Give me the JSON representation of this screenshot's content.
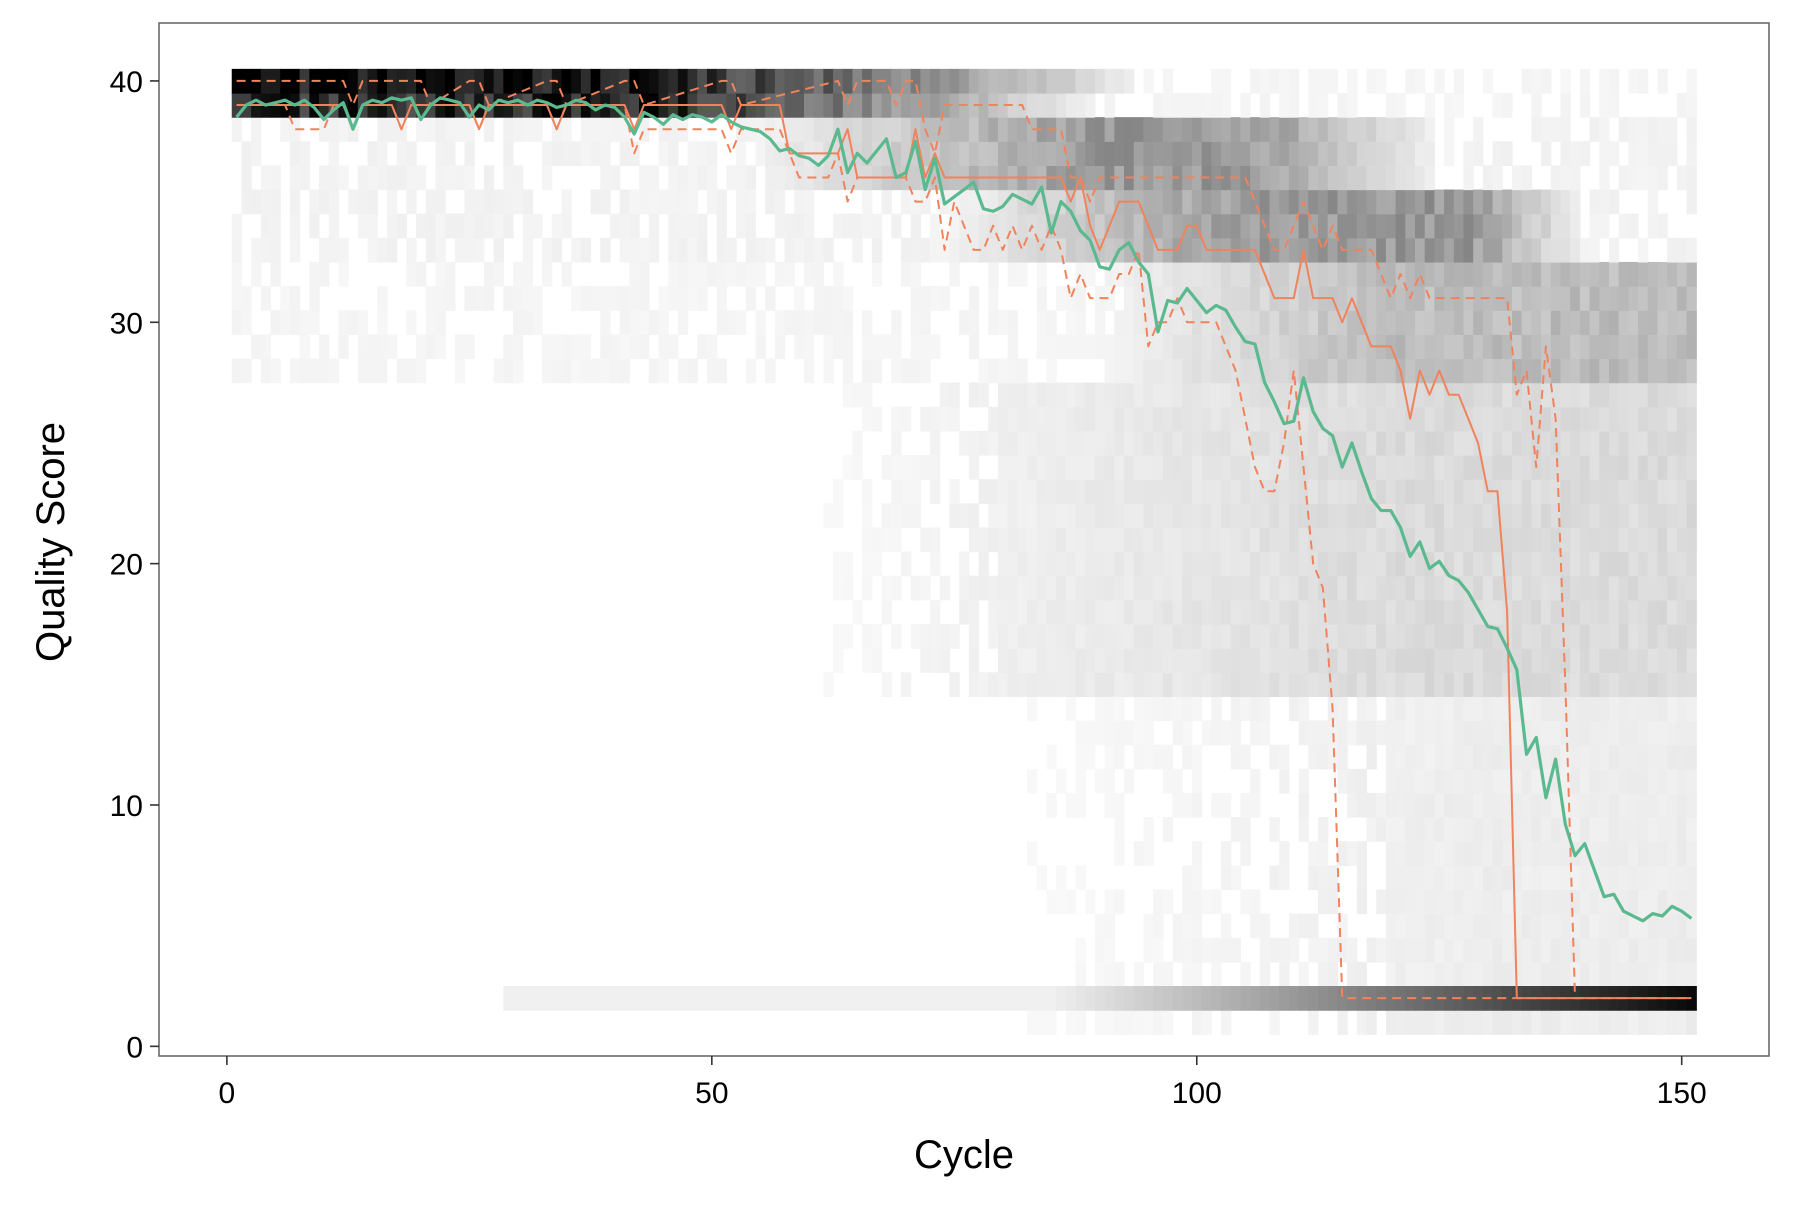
{
  "chart_data": {
    "type": "heatmap",
    "title": "",
    "xlabel": "Cycle",
    "ylabel": "Quality Score",
    "xlim": [
      -7,
      159
    ],
    "ylim": [
      -0.4,
      42.4
    ],
    "x_ticks": [
      0,
      50,
      100,
      150
    ],
    "y_ticks": [
      0,
      10,
      20,
      30,
      40
    ],
    "grid": false,
    "legend": "none",
    "heatmap": {
      "x_range": [
        1,
        151
      ],
      "y_range": [
        1,
        40
      ],
      "color_low": "#ffffff",
      "color_high": "#000000",
      "description_bands": [
        {
          "q": 40,
          "cycles": [
            1,
            51
          ],
          "level": 0.9
        },
        {
          "q": 39,
          "cycles": [
            1,
            51
          ],
          "level": 0.8
        },
        {
          "q": 36,
          "cycles": [
            55,
            110
          ],
          "level": 0.45
        },
        {
          "q": 33,
          "cycles": [
            75,
            135
          ],
          "level": 0.45
        },
        {
          "q": 31,
          "cycles": [
            95,
            151
          ],
          "level": 0.3
        },
        {
          "q": 2,
          "cycles": [
            29,
            151
          ],
          "level": 0.7
        }
      ]
    },
    "series": [
      {
        "role": "mean",
        "color": "#5bb98f",
        "dash": "none",
        "x": [
          1,
          2,
          3,
          4,
          5,
          6,
          7,
          8,
          9,
          10,
          11,
          12,
          13,
          14,
          15,
          16,
          17,
          18,
          19,
          20,
          21,
          22,
          23,
          24,
          25,
          26,
          27,
          28,
          29,
          30,
          31,
          32,
          33,
          34,
          35,
          36,
          37,
          38,
          39,
          40,
          41,
          42,
          43,
          44,
          45,
          46,
          47,
          48,
          49,
          50,
          51,
          52,
          53,
          54,
          55,
          56,
          57,
          58,
          59,
          60,
          61,
          62,
          63,
          64,
          65,
          66,
          67,
          68,
          69,
          70,
          71,
          72,
          73,
          74,
          75,
          76,
          77,
          78,
          79,
          80,
          81,
          82,
          83,
          84,
          85,
          86,
          87,
          88,
          89,
          90,
          91,
          92,
          93,
          94,
          95,
          96,
          97,
          98,
          99,
          100,
          101,
          102,
          103,
          104,
          105,
          106,
          107,
          108,
          109,
          110,
          111,
          112,
          113,
          114,
          115,
          116,
          117,
          118,
          119,
          120,
          121,
          122,
          123,
          124,
          125,
          126,
          127,
          128,
          129,
          130,
          131,
          132,
          133,
          134,
          135,
          136,
          137,
          138,
          139,
          140,
          141,
          142,
          143,
          144,
          145,
          146,
          147,
          148,
          149,
          150,
          151
        ],
        "y": [
          38.5,
          39.0,
          39.2,
          39.0,
          39.1,
          39.2,
          39.0,
          39.2,
          38.9,
          38.4,
          38.8,
          39.1,
          38.0,
          39.0,
          39.2,
          39.1,
          39.3,
          39.2,
          39.3,
          38.4,
          39.0,
          39.3,
          39.2,
          39.1,
          38.5,
          39.0,
          38.8,
          39.2,
          39.1,
          39.2,
          39.0,
          39.2,
          39.1,
          38.9,
          39.0,
          39.2,
          39.1,
          38.8,
          39.0,
          38.9,
          38.5,
          37.8,
          38.7,
          38.5,
          38.2,
          38.6,
          38.4,
          38.6,
          38.5,
          38.3,
          38.6,
          38.3,
          38.1,
          38.0,
          37.9,
          37.6,
          37.1,
          37.2,
          36.9,
          36.8,
          36.5,
          36.9,
          38.0,
          36.2,
          37.0,
          36.6,
          37.1,
          37.6,
          36.0,
          36.2,
          37.5,
          35.5,
          36.8,
          34.9,
          35.2,
          35.5,
          35.8,
          34.7,
          34.6,
          34.8,
          35.3,
          35.1,
          34.9,
          35.6,
          33.7,
          35.0,
          34.6,
          33.8,
          33.4,
          32.3,
          32.2,
          33.0,
          33.3,
          32.5,
          32.0,
          29.6,
          30.9,
          30.8,
          31.4,
          30.9,
          30.4,
          30.7,
          30.5,
          29.8,
          29.2,
          29.1,
          27.5,
          26.7,
          25.8,
          25.9,
          27.7,
          26.3,
          25.6,
          25.3,
          24.0,
          25.0,
          23.8,
          22.7,
          22.2,
          22.2,
          21.5,
          20.3,
          20.9,
          19.8,
          20.1,
          19.5,
          19.3,
          18.8,
          18.1,
          17.4,
          17.3,
          16.5,
          15.6,
          12.1,
          12.8,
          10.3,
          11.9,
          9.2,
          7.9,
          8.4,
          7.3,
          6.2,
          6.3,
          5.6,
          5.4,
          5.2,
          5.5,
          5.4,
          5.8,
          5.6,
          5.3
        ]
      },
      {
        "role": "median",
        "color": "#f0835b",
        "dash": "none",
        "x": [
          1,
          12,
          13,
          14,
          17,
          18,
          19,
          25,
          26,
          27,
          33,
          34,
          35,
          41,
          42,
          43,
          51,
          52,
          53,
          57,
          58,
          63,
          64,
          65,
          70,
          71,
          72,
          73,
          74,
          77,
          78,
          86,
          87,
          88,
          89,
          90,
          91,
          92,
          93,
          94,
          95,
          96,
          97,
          98,
          99,
          100,
          101,
          102,
          103,
          104,
          105,
          106,
          107,
          108,
          109,
          110,
          111,
          112,
          113,
          114,
          115,
          116,
          117,
          118,
          119,
          120,
          121,
          122,
          123,
          124,
          125,
          126,
          127,
          128,
          129,
          130,
          131,
          132,
          133,
          134,
          151
        ],
        "y": [
          39,
          39,
          38,
          39,
          39,
          38,
          39,
          39,
          38,
          39,
          39,
          38,
          39,
          39,
          38,
          39,
          39,
          38,
          39,
          39,
          37,
          37,
          38,
          36,
          36,
          38,
          36,
          37,
          36,
          36,
          36,
          36,
          35,
          36,
          34,
          33,
          34,
          35,
          35,
          35,
          34,
          33,
          33,
          33,
          34,
          34,
          33,
          33,
          33,
          33,
          33,
          33,
          32,
          31,
          31,
          31,
          33,
          31,
          31,
          31,
          30,
          31,
          30,
          29,
          29,
          29,
          28,
          26,
          28,
          27,
          28,
          27,
          27,
          26,
          25,
          23,
          23,
          18,
          2,
          2,
          2
        ]
      },
      {
        "role": "quartile-upper",
        "color": "#f0835b",
        "dash": "dashed",
        "x": [
          1,
          12,
          13,
          14,
          20,
          21,
          25,
          26,
          27,
          33,
          34,
          35,
          41,
          42,
          43,
          51,
          52,
          53,
          63,
          64,
          65,
          68,
          69,
          70,
          71,
          72,
          73,
          74,
          82,
          83,
          86,
          87,
          88,
          89,
          90,
          105,
          106,
          107,
          108,
          109,
          110,
          111,
          112,
          113,
          114,
          115,
          116,
          117,
          118,
          119,
          120,
          121,
          122,
          123,
          124,
          125,
          130,
          131,
          132,
          133,
          134,
          135,
          136,
          137,
          138,
          139,
          140
        ],
        "y": [
          40,
          40,
          39,
          40,
          40,
          39,
          40,
          40,
          39,
          40,
          40,
          39,
          40,
          40,
          39,
          40,
          40,
          39,
          40,
          39,
          40,
          40,
          39,
          40,
          40,
          38,
          37,
          39,
          39,
          38,
          38,
          36,
          36,
          35,
          36,
          36,
          35,
          34,
          33,
          33,
          34,
          35,
          34,
          33,
          34,
          33,
          33,
          33,
          33,
          32,
          31,
          32,
          31,
          32,
          31,
          31,
          31,
          31,
          31,
          27,
          28,
          24,
          29,
          26,
          15,
          2,
          2
        ]
      },
      {
        "role": "quartile-lower",
        "color": "#f0835b",
        "dash": "dashed",
        "x": [
          1,
          6,
          7,
          10,
          11,
          12,
          13,
          14,
          15,
          17,
          18,
          19,
          25,
          26,
          27,
          33,
          34,
          35,
          41,
          42,
          43,
          51,
          52,
          53,
          57,
          58,
          59,
          62,
          63,
          64,
          65,
          66,
          70,
          71,
          72,
          73,
          74,
          75,
          76,
          77,
          78,
          79,
          80,
          81,
          82,
          83,
          84,
          85,
          86,
          87,
          88,
          89,
          90,
          91,
          92,
          93,
          94,
          95,
          96,
          97,
          98,
          99,
          100,
          101,
          102,
          103,
          104,
          105,
          106,
          107,
          108,
          109,
          110,
          111,
          112,
          113,
          114,
          115,
          116,
          117,
          151
        ],
        "y": [
          39,
          39,
          38,
          38,
          39,
          39,
          38,
          39,
          39,
          39,
          38,
          39,
          39,
          38,
          39,
          39,
          38,
          39,
          39,
          37,
          38,
          38,
          37,
          38,
          38,
          37,
          36,
          36,
          37,
          35,
          36,
          36,
          36,
          35,
          35,
          36,
          33,
          35,
          34,
          33,
          33,
          34,
          33,
          34,
          33,
          34,
          33,
          34,
          33,
          31,
          32,
          31,
          31,
          31,
          32,
          32,
          33,
          29,
          30,
          30,
          31,
          30,
          30,
          30,
          30,
          29,
          28,
          26,
          24,
          23,
          23,
          25,
          28,
          24,
          20,
          19,
          14,
          2,
          2,
          2,
          2
        ]
      }
    ]
  }
}
